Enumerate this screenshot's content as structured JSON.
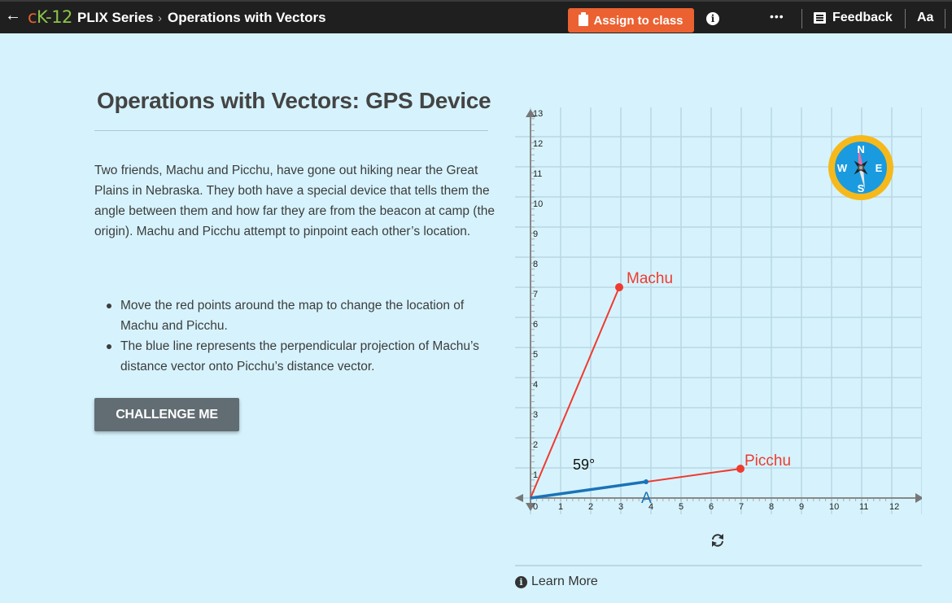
{
  "topbar": {
    "back_icon": "arrow-left-icon",
    "logo_c": "c",
    "logo_k": "K-12",
    "series": "PLIX Series",
    "separator": "›",
    "crumb": "Operations with Vectors",
    "assign_label": "Assign to class",
    "info_icon": "i",
    "more_label": "•••",
    "feedback_label": "Feedback",
    "font_label": "Aa"
  },
  "content": {
    "title": "Operations with Vectors: GPS Device",
    "paragraph": "Two friends, Machu and Picchu, have gone out hiking near the Great Plains in Nebraska. They both have a special device that tells them the angle between them and how far they are from the beacon at camp (the origin). Machu and Picchu attempt to pinpoint each other’s location.",
    "bullets": [
      "Move the red points around the map to change the location of Machu and Picchu.",
      "The blue line represents the perpendicular projection of Machu’s distance vector onto Picchu’s distance vector."
    ],
    "challenge_label": "CHALLENGE ME"
  },
  "graph": {
    "x_ticks": [
      "0",
      "1",
      "2",
      "3",
      "4",
      "5",
      "6",
      "7",
      "8",
      "9",
      "10",
      "11",
      "12"
    ],
    "y_ticks": [
      "1",
      "2",
      "3",
      "4",
      "5",
      "6",
      "7",
      "8",
      "9",
      "10",
      "11",
      "12",
      "13"
    ],
    "machu_label": "Machu",
    "picchu_label": "Picchu",
    "projection_label": "A",
    "angle_label": "59°",
    "compass": {
      "n": "N",
      "s": "S",
      "e": "E",
      "w": "W"
    },
    "colors": {
      "vector": "#f03a2e",
      "projection": "#1a73b8",
      "axis": "#888888",
      "grid": "#b9d8e3"
    }
  },
  "chart_data": {
    "type": "scatter",
    "title": "Operations with Vectors: GPS Device",
    "xlim": [
      0,
      12
    ],
    "ylim": [
      0,
      13
    ],
    "grid": true,
    "points": [
      {
        "name": "Machu",
        "x": 3,
        "y": 7
      },
      {
        "name": "Picchu",
        "x": 7,
        "y": 1
      },
      {
        "name": "A",
        "x": 3.7,
        "y": 0.55
      }
    ],
    "annotations": [
      "59°"
    ]
  },
  "footer": {
    "refresh_icon": "refresh-icon",
    "learn_more_label": "Learn More"
  }
}
